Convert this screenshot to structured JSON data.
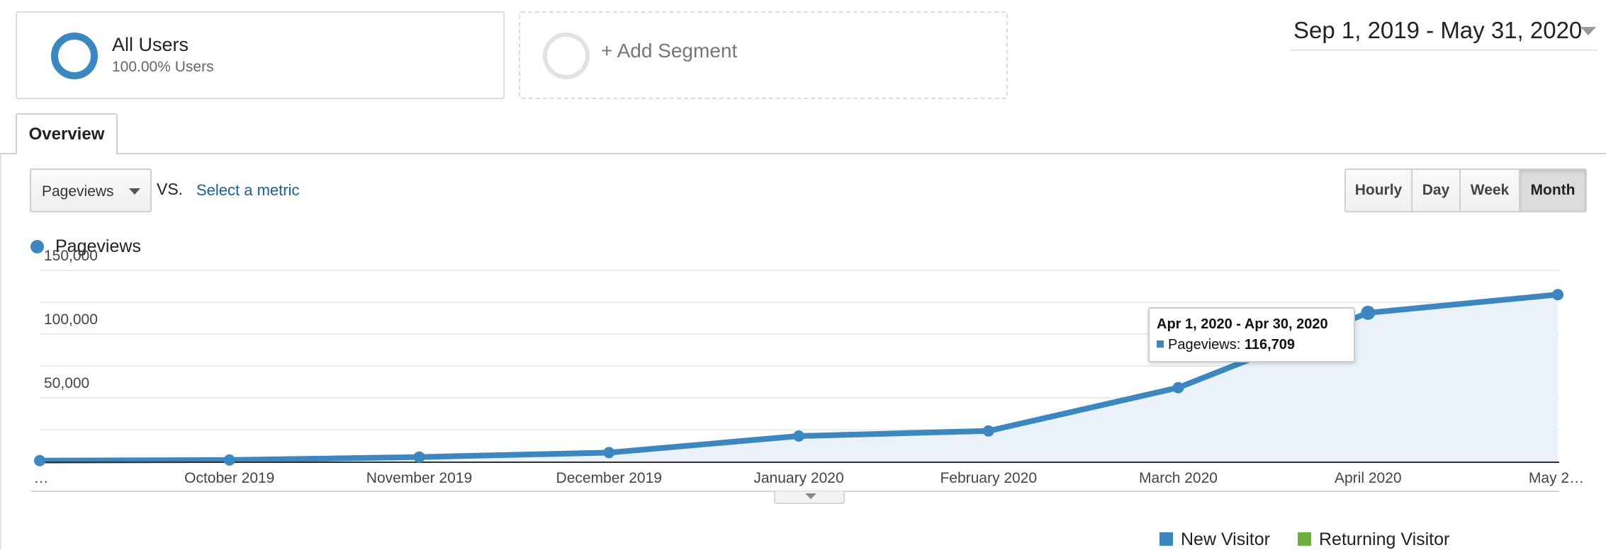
{
  "segments": {
    "all_users": {
      "name": "All Users",
      "subtitle": "100.00% Users"
    },
    "add_segment": {
      "label": "+ Add Segment"
    }
  },
  "date_range": {
    "label": "Sep 1, 2019 - May 31, 2020"
  },
  "tabs": [
    {
      "label": "Overview",
      "active": true
    }
  ],
  "metric": {
    "selected": "Pageviews",
    "vs_label": "VS.",
    "select_metric_link": "Select a metric"
  },
  "time_buttons": [
    {
      "label": "Hourly",
      "active": false
    },
    {
      "label": "Day",
      "active": false
    },
    {
      "label": "Week",
      "active": false
    },
    {
      "label": "Month",
      "active": true
    }
  ],
  "colors": {
    "series": "#3a87c2",
    "fill": "#eaf1f9",
    "new_visitor": "#3a87c2",
    "returning_visitor": "#6cb23a"
  },
  "chart_data": {
    "type": "area",
    "series": [
      {
        "name": "Pageviews",
        "values": [
          700,
          1200,
          3500,
          7000,
          20000,
          24000,
          58000,
          116709,
          131000
        ]
      }
    ],
    "x": [
      "…",
      "October 2019",
      "November 2019",
      "December 2019",
      "January 2020",
      "February 2020",
      "March 2020",
      "April 2020",
      "May 2…"
    ],
    "ylim": [
      0,
      150000
    ],
    "yticks": [
      "50,000",
      "100,000",
      "150,000"
    ],
    "grid": true
  },
  "tooltip": {
    "title": "Apr 1, 2020 - Apr 30, 2020",
    "label": "Pageviews:",
    "value": "116,709"
  },
  "bottom_legend": [
    {
      "label": "New Visitor"
    },
    {
      "label": "Returning Visitor"
    }
  ]
}
